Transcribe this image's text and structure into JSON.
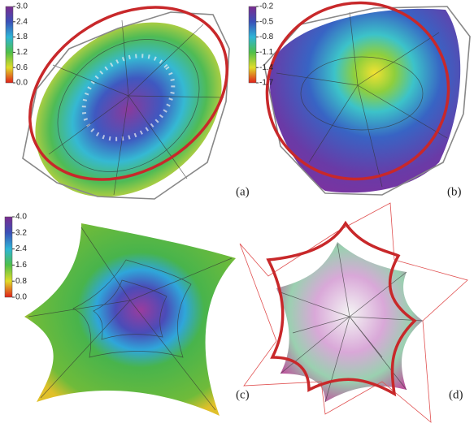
{
  "panels": [
    {
      "label": "(a)",
      "colorbar": {
        "lim": [
          0,
          3
        ],
        "ticks": [
          {
            "value": 0,
            "label": "0.0"
          },
          0.6,
          1.2,
          1.8,
          2.4,
          {
            "value": 3,
            "label": "3.0"
          }
        ]
      }
    },
    {
      "label": "(b)",
      "colorbar": {
        "lim": [
          -1.7,
          -0.2
        ],
        "ticks": [
          -1.7,
          -1.4,
          -1.1,
          -0.8,
          -0.5,
          -0.2
        ]
      }
    },
    {
      "label": "(c)",
      "colorbar": {
        "lim": [
          0,
          4
        ],
        "ticks": [
          {
            "value": 0,
            "label": "0.0"
          },
          0.8,
          1.6,
          2.4,
          3.2,
          {
            "value": 4,
            "label": "4.0"
          }
        ]
      }
    },
    {
      "label": "(d)"
    }
  ]
}
